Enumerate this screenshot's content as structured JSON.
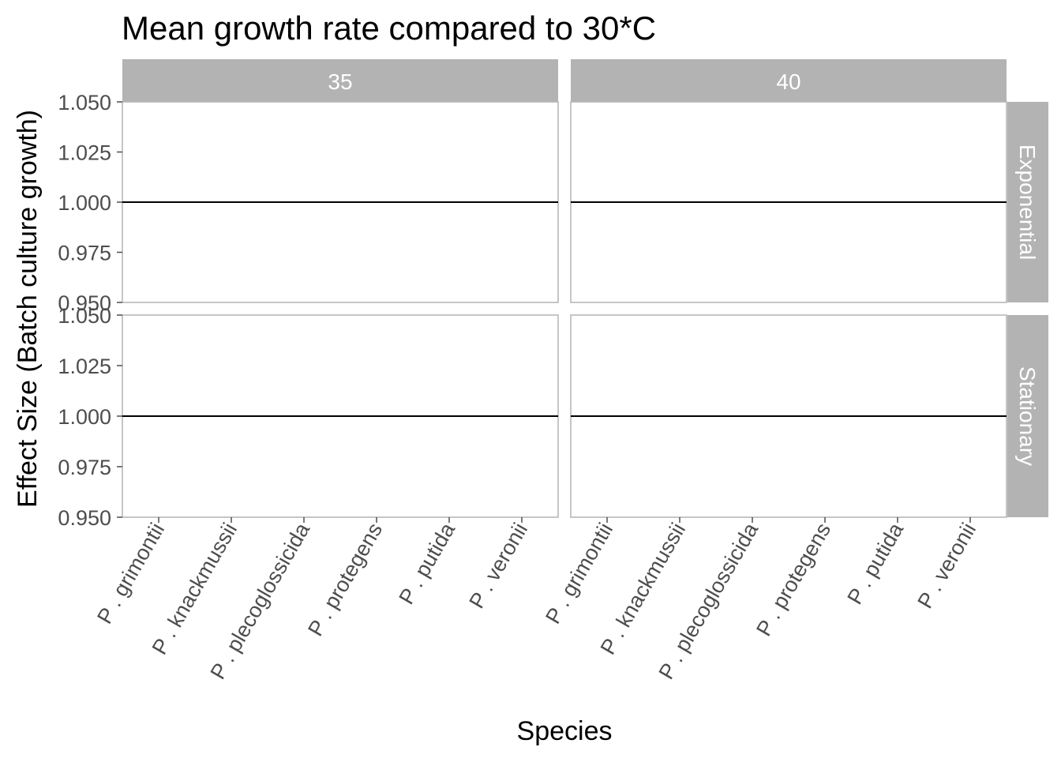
{
  "chart_data": {
    "type": "scatter",
    "title": "Mean growth rate compared to 30*C",
    "xlabel": "Species",
    "ylabel": "Effect Size (Batch culture growth)",
    "categories": [
      "P . grimontii",
      "P . knackmussii",
      "P . plecoglossicida",
      "P . protegens",
      "P . putida",
      "P . veronii"
    ],
    "ylim": [
      0.95,
      1.05
    ],
    "y_ticks": [
      "0.950",
      "0.975",
      "1.000",
      "1.025",
      "1.050"
    ],
    "reference_line": 1.0,
    "grid": false,
    "facet_columns": [
      "35",
      "40"
    ],
    "facet_rows": [
      "Exponential",
      "Stationary"
    ],
    "series": [],
    "colors": {
      "strip_background": "#b3b3b3",
      "strip_text": "#ffffff",
      "panel_border": "#b3b3b3",
      "reference_line": "#000000",
      "axis_text": "#4d4d4d",
      "title_text": "#000000"
    }
  }
}
